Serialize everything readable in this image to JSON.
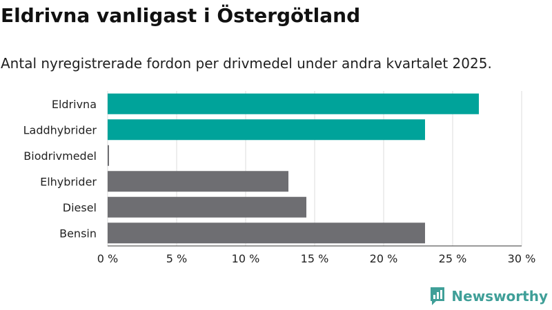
{
  "title": "Eldrivna vanligast i Östergötland",
  "subtitle": "Antal nyregistrerade fordon per drivmedel under andra kvartalet 2025.",
  "brand": "Newsworthy",
  "colors": {
    "highlight": "#00a39a",
    "other": "#6e6e72",
    "grid": "#dcdcdc",
    "brand": "#3f9f98"
  },
  "chart_data": {
    "type": "bar",
    "orientation": "horizontal",
    "categories": [
      "Eldrivna",
      "Laddhybrider",
      "Biodrivmedel",
      "Elhybrider",
      "Diesel",
      "Bensin"
    ],
    "values": [
      26.9,
      23.0,
      0.1,
      13.1,
      14.4,
      23.0
    ],
    "highlighted": [
      true,
      true,
      false,
      false,
      false,
      false
    ],
    "xlim": [
      0,
      30
    ],
    "xticks": [
      "0 %",
      "5 %",
      "10 %",
      "15 %",
      "20 %",
      "25 %",
      "30 %"
    ],
    "grid": true
  }
}
